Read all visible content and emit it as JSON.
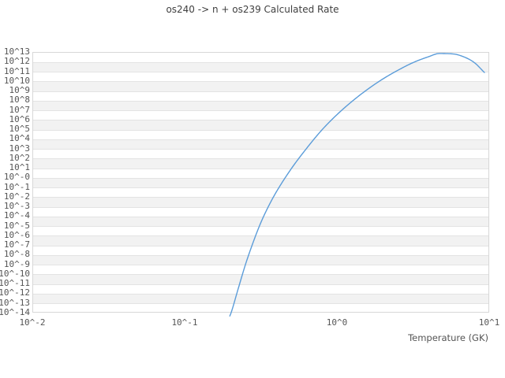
{
  "title": "os240 -> n + os239 Calculated Rate",
  "axes": {
    "x_label": "Temperature (GK)",
    "x_tick_labels": [
      "10^-2",
      "10^-1",
      "10^0",
      "10^1"
    ],
    "y_tick_labels": [
      "10^13",
      "10^12",
      "10^11",
      "10^10",
      "10^9",
      "10^8",
      "10^7",
      "10^6",
      "10^5",
      "10^4",
      "10^3",
      "10^2",
      "10^1",
      "10^-0",
      "10^-1",
      "10^-2",
      "10^-3",
      "10^-4",
      "10^-5",
      "10^-6",
      "10^-7",
      "10^-8",
      "10^-9",
      "10^-10",
      "10^-11",
      "10^-12",
      "10^-13",
      "10^-14"
    ]
  },
  "colors": {
    "line": "#5b9cd9",
    "band": "#f2f2f2",
    "gridline": "#e3e3e3",
    "plot_border": "#d7d7d7",
    "tick_text": "#555555",
    "title_text": "#404040"
  },
  "chart_data": {
    "type": "line",
    "title": "os240 -> n + os239 Calculated Rate",
    "xlabel": "Temperature (GK)",
    "ylabel": "",
    "x_scale": "log",
    "y_scale": "log",
    "xlim": [
      0.01,
      10
    ],
    "ylim": [
      1e-14,
      10000000000000.0
    ],
    "grid": true,
    "band_style": "alternating horizontal decade stripes",
    "legend": null,
    "series": [
      {
        "name": "calculated rate",
        "x": [
          0.198,
          0.202,
          0.224,
          0.251,
          0.282,
          0.316,
          0.355,
          0.398,
          0.501,
          0.631,
          0.794,
          1.0,
          1.26,
          1.58,
          2.0,
          2.51,
          3.16,
          3.98,
          4.7,
          5.62,
          6.31,
          7.94,
          9.3
        ],
        "y": [
          4.5e-15,
          1e-14,
          2.5e-12,
          1e-09,
          2e-07,
          2e-05,
          0.001,
          0.028,
          7.9,
          1000.0,
          79000.0,
          3200000.0,
          79000000.0,
          1260000000.0,
          15800000000.0,
          126000000000.0,
          790000000000.0,
          3160000000000.0,
          6900000000000.0,
          6500000000000.0,
          4800000000000.0,
          850000000000.0,
          75000000000.0
        ]
      }
    ]
  }
}
